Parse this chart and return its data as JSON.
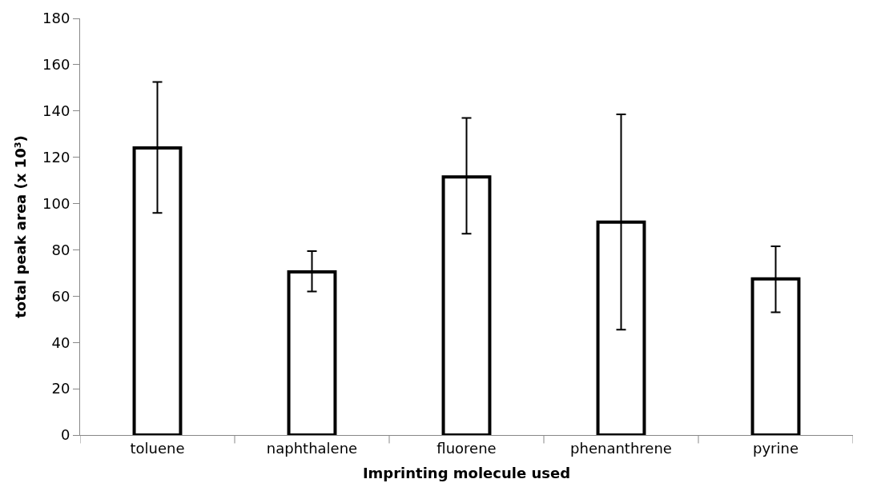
{
  "chart_data": {
    "type": "bar",
    "xlabel": "Imprinting molecule used",
    "ylabel": "total peak area (x 10³)",
    "categories": [
      "toluene",
      "naphthalene",
      "fluorene",
      "phenanthrene",
      "pyrine"
    ],
    "values": [
      124,
      70.5,
      111.5,
      92,
      67.5
    ],
    "errors": [
      [
        96,
        152.5
      ],
      [
        62,
        79.5
      ],
      [
        87,
        137
      ],
      [
        45.5,
        138.5
      ],
      [
        53,
        81.5
      ]
    ],
    "color": "#ffffff",
    "ylim": [
      0,
      180
    ],
    "yticks": [
      0,
      20,
      40,
      60,
      80,
      100,
      120,
      140,
      160,
      180
    ]
  }
}
